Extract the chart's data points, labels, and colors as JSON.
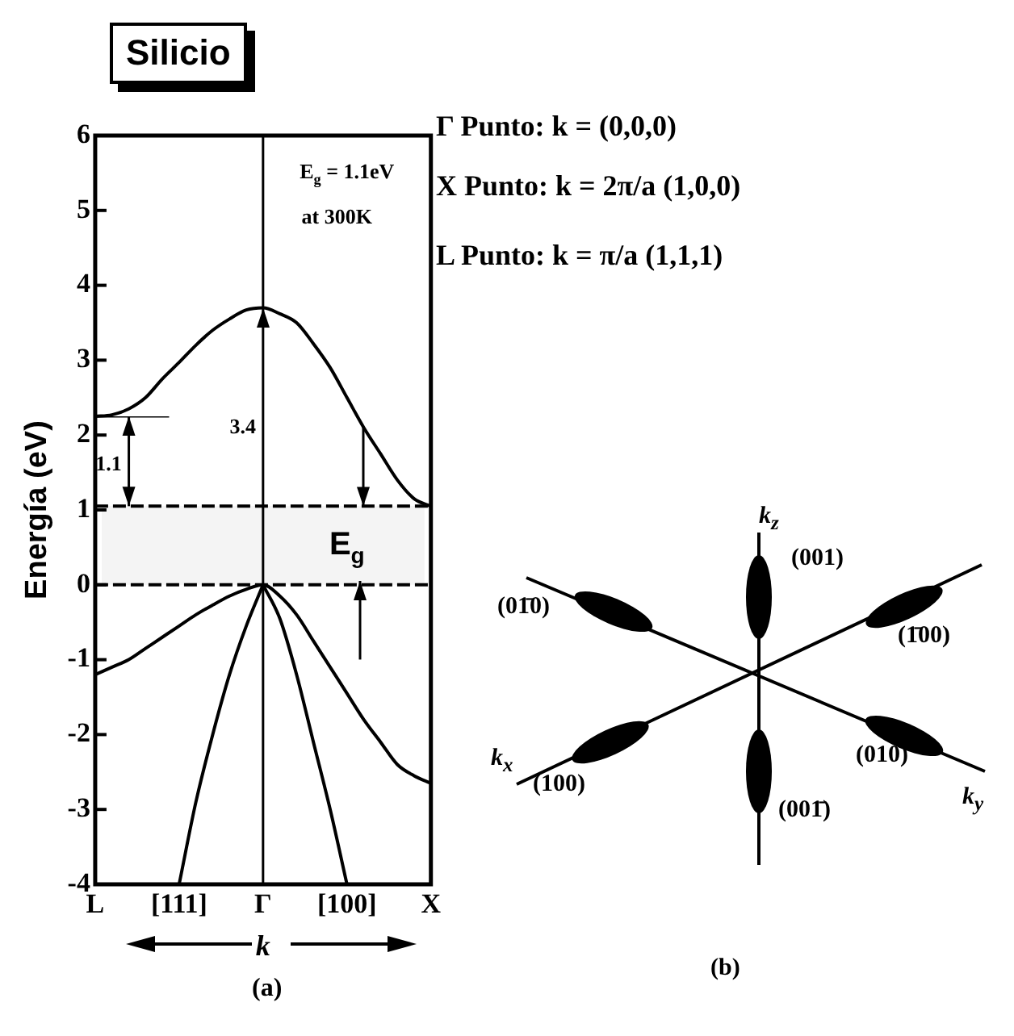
{
  "chart_data": [
    {
      "type": "line",
      "title": "Silicio",
      "ylabel": "Energía (eV)",
      "xlabel": "k",
      "categories": [
        "L",
        null,
        null,
        null,
        null,
        "[111]",
        null,
        null,
        null,
        null,
        "Γ",
        null,
        null,
        null,
        null,
        "[100]",
        null,
        null,
        null,
        null,
        "X"
      ],
      "ylim": [
        -4,
        6
      ],
      "yticks": [
        -4,
        -3,
        -2,
        -1,
        0,
        1,
        2,
        3,
        4,
        5,
        6
      ],
      "grid": false,
      "legend": false,
      "marker": "none",
      "line_style": "solid",
      "series": [
        {
          "type": "line",
          "color": "#000000",
          "values": [
            2.25,
            2.27,
            2.35,
            2.5,
            2.75,
            2.97,
            3.2,
            3.4,
            3.55,
            3.67,
            3.7,
            3.62,
            3.5,
            3.22,
            2.9,
            2.5,
            2.1,
            1.75,
            1.4,
            1.15,
            1.05
          ]
        },
        {
          "type": "line",
          "color": "#000000",
          "values": [
            -1.2,
            -1.1,
            -1,
            -0.85,
            -0.7,
            -0.55,
            -0.4,
            -0.27,
            -0.15,
            -0.06,
            0,
            -0.15,
            -0.4,
            -0.75,
            -1.1,
            -1.45,
            -1.8,
            -2.1,
            -2.4,
            -2.55,
            -2.65
          ]
        },
        {
          "type": "line",
          "color": "#000000",
          "values": [
            null,
            null,
            null,
            null,
            null,
            -4,
            -2.9,
            -2,
            -1.2,
            -0.55,
            0,
            null,
            null,
            null,
            null,
            null,
            null,
            null,
            null,
            null,
            null
          ]
        },
        {
          "type": "line",
          "color": "#000000",
          "values": [
            null,
            null,
            null,
            null,
            null,
            null,
            null,
            null,
            null,
            null,
            0,
            -0.45,
            -1.2,
            -2.1,
            -3,
            -4,
            null,
            null,
            null,
            null,
            null
          ]
        }
      ],
      "ref_lines": [
        {
          "axis": "x",
          "value": "Γ"
        },
        {
          "axis": "y",
          "value": 1.05,
          "line_style": "dashed"
        },
        {
          "axis": "y",
          "value": 0,
          "line_style": "dashed"
        }
      ],
      "bands": [
        {
          "axis": "y",
          "from": 0,
          "to": 1.05,
          "label": "E$_{g}$",
          "color": "#f4f4f4"
        }
      ],
      "annotations": [
        "E$_{g}$ = 1.1eV",
        "at 300K",
        "3.4",
        "1.1",
        "Γ Punto: k = (0,0,0)",
        "X Punto: k = 2π/a (1,0,0)",
        "L Punto: k = π/a (1,1,1)",
        "(a)"
      ]
    },
    {
      "type": "other",
      "annotations": [
        "k$_{z}$",
        "(001)",
        "(01̄0)",
        "(1̄00)",
        "k$_{x}$",
        "(100)",
        "(010)",
        "k$_{y}$",
        "(001̄)",
        "(b)"
      ]
    }
  ]
}
